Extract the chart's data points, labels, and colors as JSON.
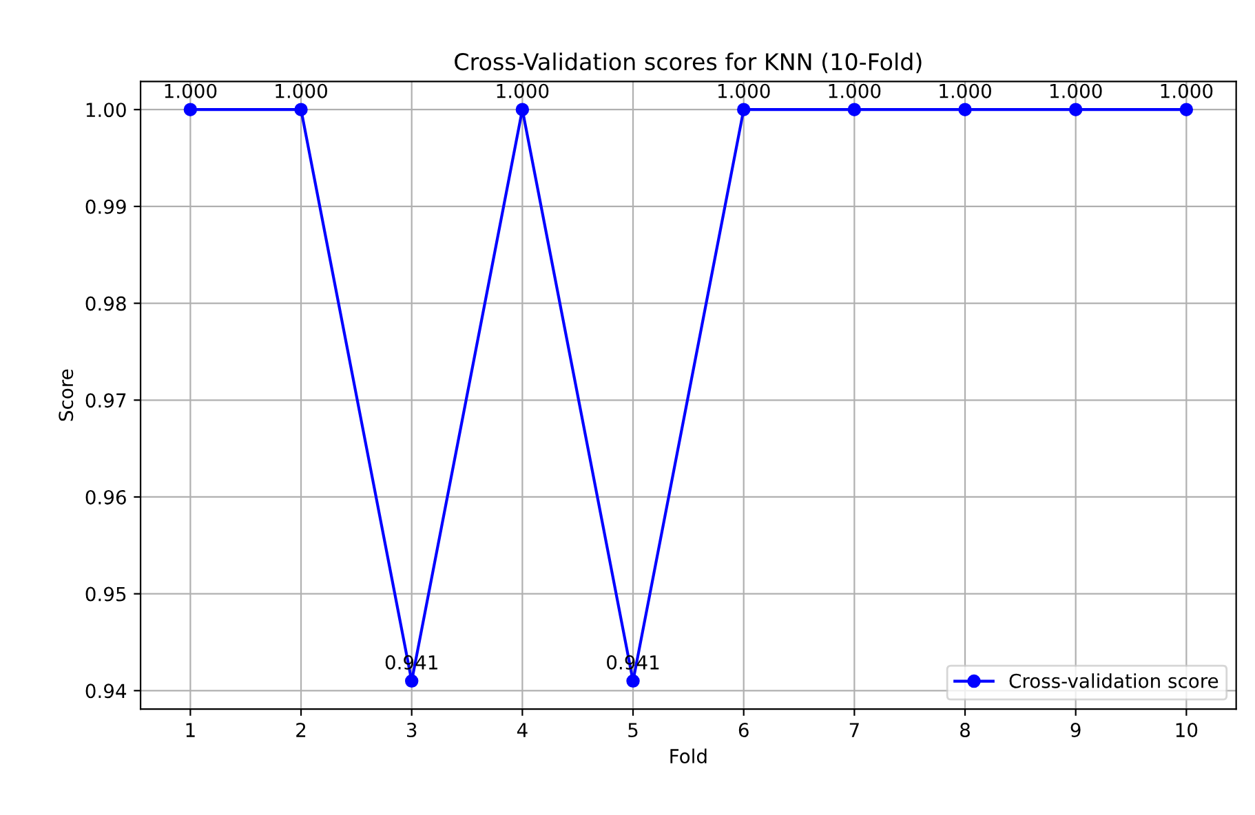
{
  "chart_data": {
    "type": "line",
    "title": "Cross-Validation scores for KNN (10-Fold)",
    "xlabel": "Fold",
    "ylabel": "Score",
    "x": [
      1,
      2,
      3,
      4,
      5,
      6,
      7,
      8,
      9,
      10
    ],
    "series": [
      {
        "name": "Cross-validation score",
        "color": "#0000ff",
        "values": [
          1.0,
          1.0,
          0.941,
          1.0,
          0.941,
          1.0,
          1.0,
          1.0,
          1.0,
          1.0
        ],
        "value_labels": [
          "1.000",
          "1.000",
          "0.941",
          "1.000",
          "0.941",
          "1.000",
          "1.000",
          "1.000",
          "1.000",
          "1.000"
        ]
      }
    ],
    "xlim": [
      0.55,
      10.45
    ],
    "ylim": [
      0.9381,
      1.0029
    ],
    "xticks": [
      1,
      2,
      3,
      4,
      5,
      6,
      7,
      8,
      9,
      10
    ],
    "yticks": [
      {
        "value": 0.94,
        "label": "0.94"
      },
      {
        "value": 0.95,
        "label": "0.95"
      },
      {
        "value": 0.96,
        "label": "0.96"
      },
      {
        "value": 0.97,
        "label": "0.97"
      },
      {
        "value": 0.98,
        "label": "0.98"
      },
      {
        "value": 0.99,
        "label": "0.99"
      },
      {
        "value": 1.0,
        "label": "1.00"
      }
    ],
    "grid": true,
    "legend": "lower right",
    "marker": "circle",
    "line_style": "solid"
  }
}
